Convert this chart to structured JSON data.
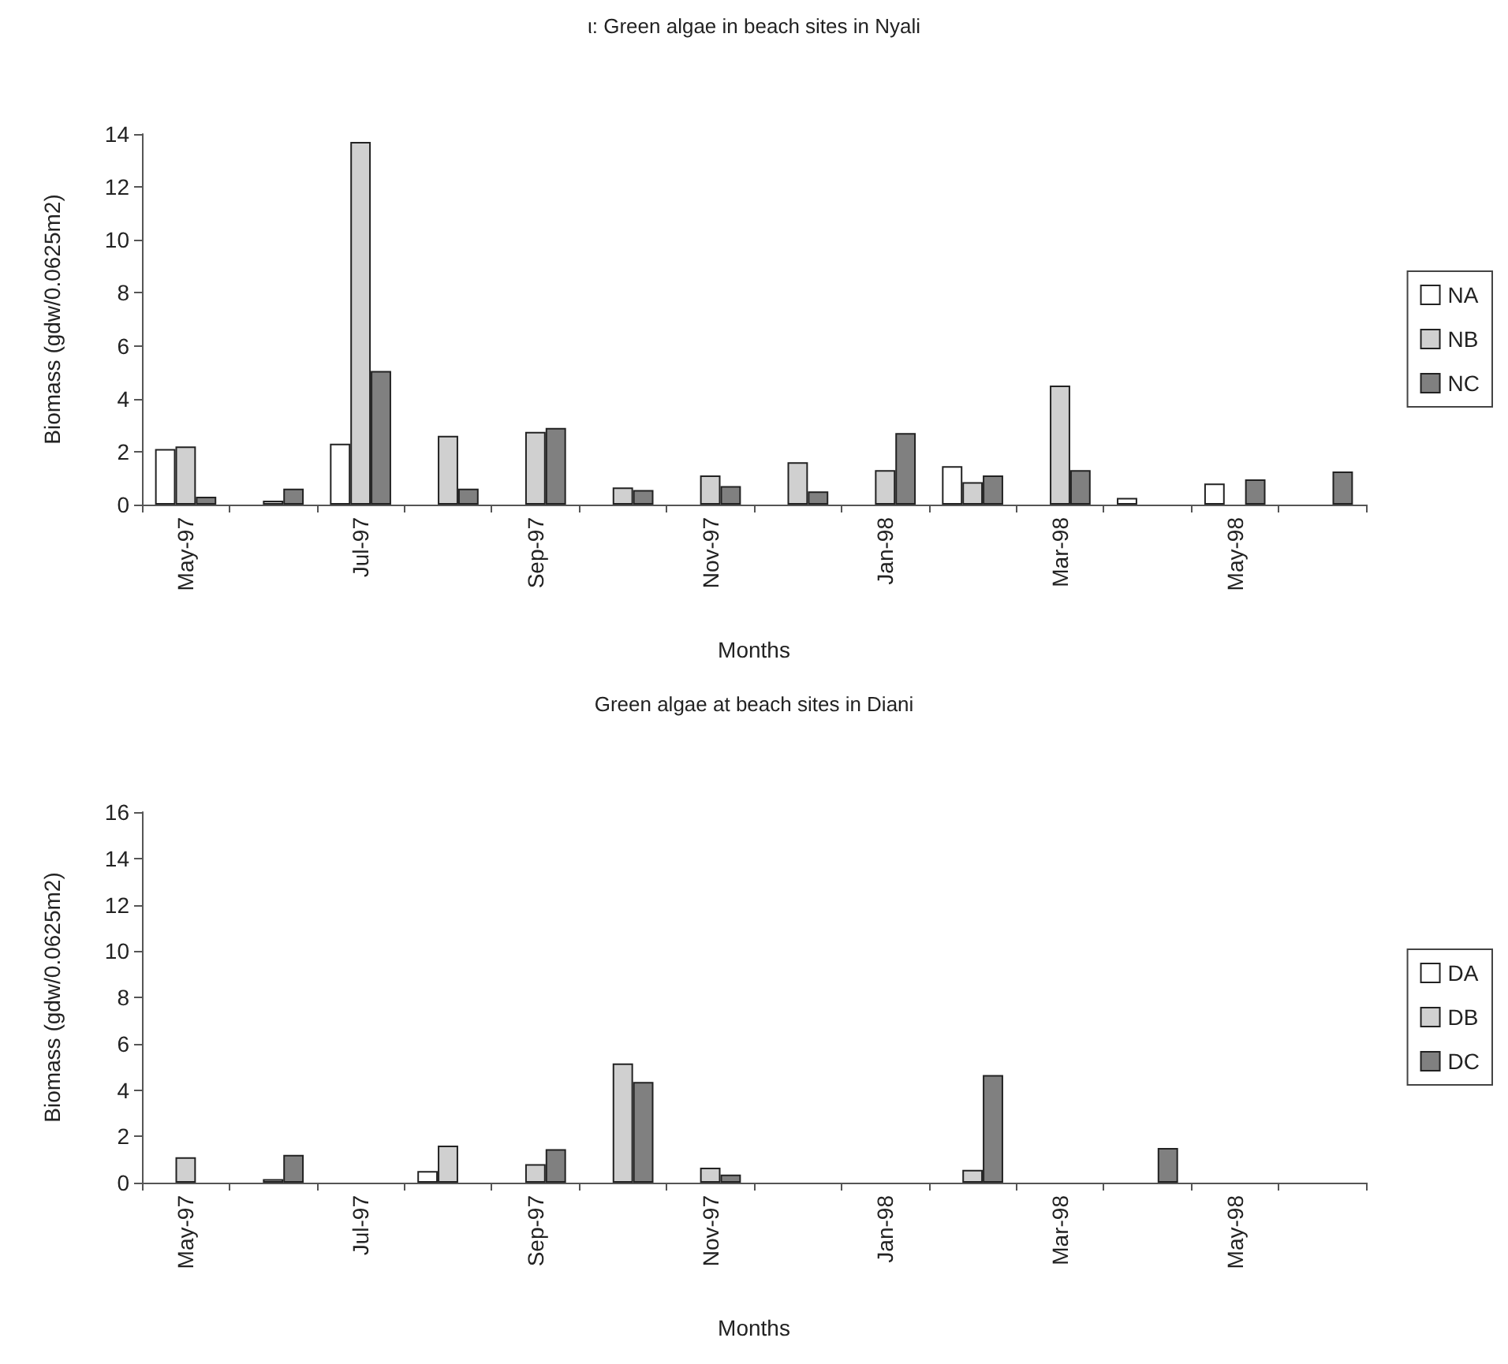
{
  "chart_data": [
    {
      "type": "bar",
      "title": "ι: Green algae in beach sites in Nyali",
      "xlabel": "Months",
      "ylabel": "Biomass (gdw/0.0625m2)",
      "categories": [
        "May-97",
        null,
        "Jul-97",
        null,
        "Sep-97",
        null,
        "Nov-97",
        null,
        "Jan-98",
        null,
        "Mar-98",
        null,
        "May-98",
        null
      ],
      "series": [
        {
          "name": "NA",
          "color": "#ffffff",
          "values": [
            2.1,
            null,
            2.3,
            null,
            null,
            null,
            null,
            null,
            null,
            1.45,
            null,
            0.25,
            0.8,
            null
          ]
        },
        {
          "name": "NB",
          "color": "#d0d0d0",
          "values": [
            2.2,
            0.15,
            13.7,
            2.6,
            2.75,
            0.65,
            1.1,
            1.6,
            1.3,
            0.85,
            4.5,
            null,
            null,
            null
          ]
        },
        {
          "name": "NC",
          "color": "#808080",
          "values": [
            0.3,
            0.6,
            5.05,
            0.6,
            2.9,
            0.55,
            0.7,
            0.5,
            2.7,
            1.1,
            1.3,
            null,
            0.95,
            1.25
          ]
        }
      ],
      "ylim": [
        0,
        14
      ],
      "yticks": [
        0,
        2,
        4,
        6,
        8,
        10,
        12,
        14
      ],
      "grid": false,
      "legend": "right"
    },
    {
      "type": "bar",
      "title": "Green algae at beach sites in Diani",
      "xlabel": "Months",
      "ylabel": "Biomass (gdw/0.0625m2)",
      "categories": [
        "May-97",
        null,
        "Jul-97",
        null,
        "Sep-97",
        null,
        "Nov-97",
        null,
        "Jan-98",
        null,
        "Mar-98",
        null,
        "May-98",
        null
      ],
      "series": [
        {
          "name": "DA",
          "color": "#ffffff",
          "values": [
            null,
            null,
            null,
            0.5,
            null,
            null,
            null,
            null,
            null,
            null,
            null,
            null,
            null,
            null
          ]
        },
        {
          "name": "DB",
          "color": "#d0d0d0",
          "values": [
            1.1,
            0.15,
            null,
            1.6,
            0.8,
            5.15,
            0.65,
            null,
            null,
            0.55,
            null,
            null,
            null,
            null
          ]
        },
        {
          "name": "DC",
          "color": "#808080",
          "values": [
            null,
            1.2,
            null,
            null,
            1.45,
            4.35,
            0.35,
            null,
            null,
            4.65,
            null,
            1.5,
            null,
            null
          ]
        }
      ],
      "ylim": [
        0,
        16
      ],
      "yticks": [
        0,
        2,
        4,
        6,
        8,
        10,
        12,
        14,
        16
      ],
      "grid": false,
      "legend": "right"
    }
  ]
}
